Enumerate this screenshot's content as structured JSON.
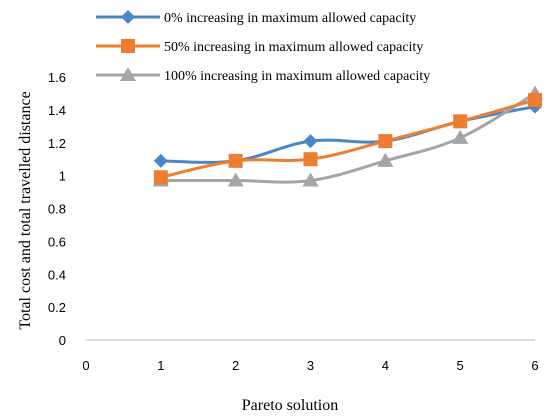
{
  "chart_data": {
    "type": "line",
    "x": [
      1,
      2,
      3,
      4,
      5,
      6
    ],
    "series": [
      {
        "name": "0% increasing in maximum allowed capacity",
        "marker": "diamond",
        "color": "#4a86c8",
        "values": [
          1.09,
          1.09,
          1.21,
          1.21,
          1.33,
          1.42
        ]
      },
      {
        "name": "50% increasing in maximum allowed capacity",
        "marker": "square",
        "color": "#ed7d31",
        "values": [
          0.99,
          1.09,
          1.1,
          1.21,
          1.33,
          1.46
        ]
      },
      {
        "name": "100% increasing in maximum allowed capacity",
        "marker": "triangle",
        "color": "#a5a5a5",
        "values": [
          0.97,
          0.97,
          0.97,
          1.09,
          1.23,
          1.5
        ]
      }
    ],
    "xlabel": "Pareto solution",
    "ylabel": "Total cost and total travelled distance",
    "xlim": [
      0,
      6
    ],
    "ylim": [
      0,
      1.6
    ],
    "yticks": [
      "0",
      "0.2",
      "0.4",
      "0.6",
      "0.8",
      "1",
      "1.2",
      "1.4",
      "1.6"
    ],
    "xticks": [
      "0",
      "1",
      "2",
      "3",
      "4",
      "5",
      "6"
    ],
    "grid": false,
    "legend_position": "top"
  }
}
